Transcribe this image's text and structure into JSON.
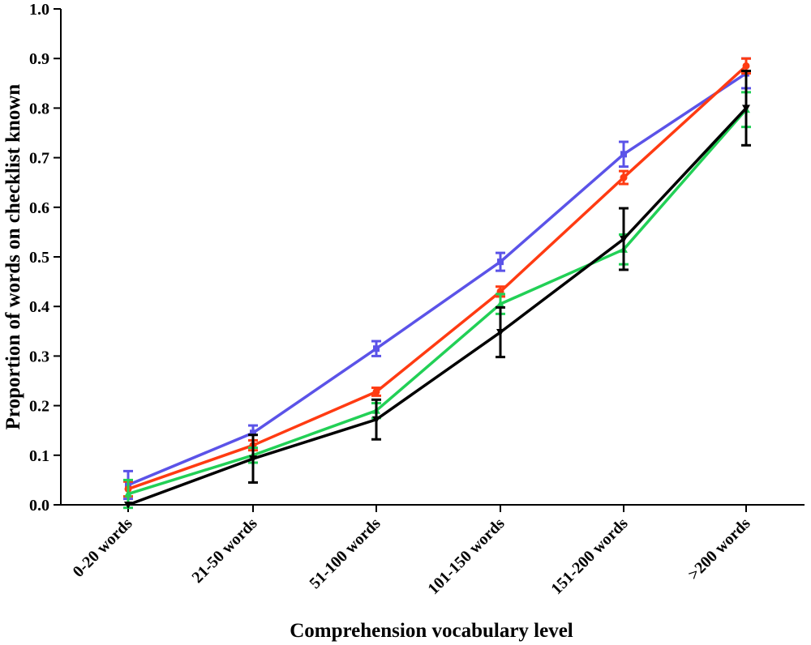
{
  "chart_data": {
    "type": "line",
    "title": "",
    "xlabel": "Comprehension vocabulary level",
    "ylabel": "Proportion of words on checklist known",
    "categories": [
      "0-20 words",
      "21-50 words",
      "51-100 words",
      "101-150 words",
      "151-200 words",
      ">200 words"
    ],
    "ylim": [
      0.0,
      1.0
    ],
    "yticks": [
      "0.0",
      "0.1",
      "0.2",
      "0.3",
      "0.4",
      "0.5",
      "0.6",
      "0.7",
      "0.8",
      "0.9",
      "1.0"
    ],
    "grid": false,
    "series": [
      {
        "name": "blue series",
        "color": "#5B53E8",
        "marker": "square",
        "values": [
          0.04,
          0.145,
          0.315,
          0.49,
          0.707,
          0.87
        ],
        "errors": [
          0.028,
          0.015,
          0.015,
          0.018,
          0.025,
          0.03
        ]
      },
      {
        "name": "red series",
        "color": "#FF3B12",
        "marker": "circle",
        "values": [
          0.032,
          0.12,
          0.228,
          0.43,
          0.66,
          0.885
        ],
        "errors": [
          0.015,
          0.01,
          0.008,
          0.01,
          0.013,
          0.015
        ]
      },
      {
        "name": "green series",
        "color": "#22D056",
        "marker": "triangle",
        "values": [
          0.022,
          0.1,
          0.19,
          0.405,
          0.515,
          0.797
        ],
        "errors": [
          0.028,
          0.015,
          0.015,
          0.02,
          0.03,
          0.035
        ]
      },
      {
        "name": "black series",
        "color": "#000000",
        "marker": "down-triangle",
        "values": [
          0.0,
          0.093,
          0.172,
          0.348,
          0.536,
          0.8
        ],
        "errors": [
          0.0,
          0.048,
          0.04,
          0.05,
          0.062,
          0.075
        ]
      }
    ]
  }
}
